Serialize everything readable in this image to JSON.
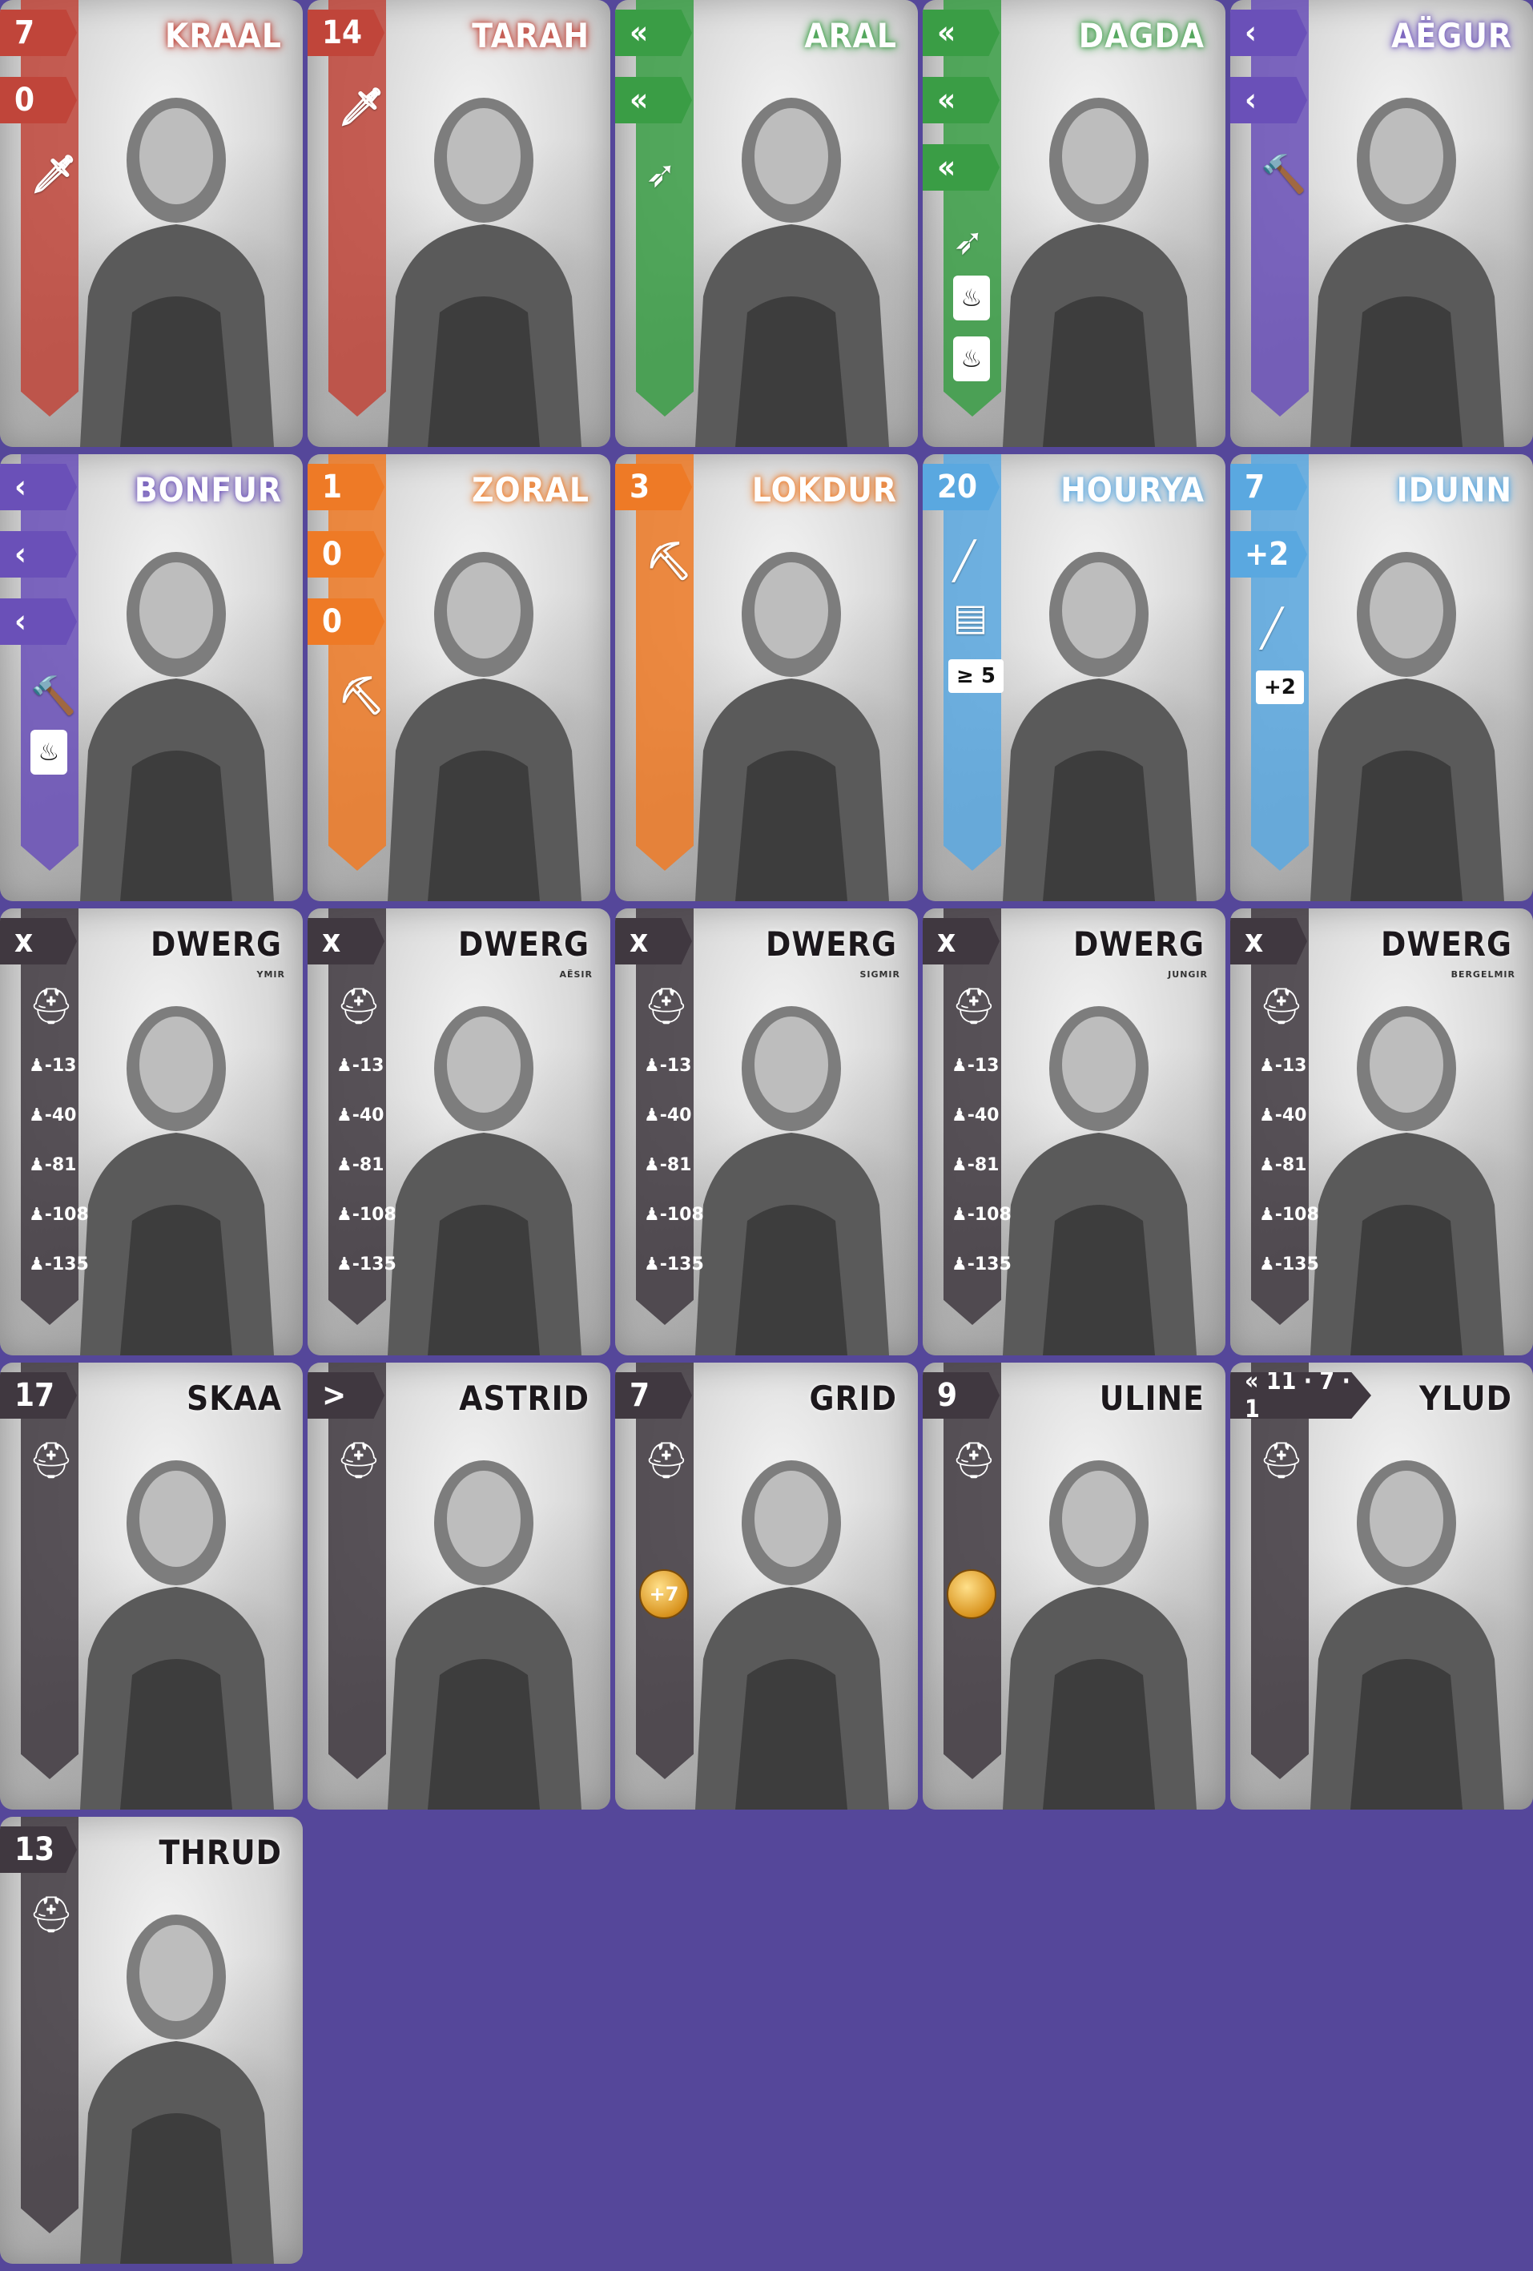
{
  "colors": {
    "background": "#55479a",
    "red": "#c0453a",
    "green": "#3a9d45",
    "purple": "#6a50b8",
    "orange": "#ee7a26",
    "blue": "#5aa8e0",
    "dark": "#403840"
  },
  "cards": [
    {
      "name": "KRAAL",
      "color": "#c0453a",
      "tabs": [
        "7",
        "0"
      ],
      "icons": [
        "sword-icon"
      ]
    },
    {
      "name": "TARAH",
      "color": "#c0453a",
      "tabs": [
        "14"
      ],
      "icons": [
        "sword-icon"
      ]
    },
    {
      "name": "ARAL",
      "color": "#3a9d45",
      "tabs": [
        "«",
        "«"
      ],
      "icons": [
        "horn-icon"
      ]
    },
    {
      "name": "DAGDA",
      "color": "#3a9d45",
      "tabs": [
        "«",
        "«",
        "«"
      ],
      "icons": [
        "horn-icon",
        "fire-icon",
        "fire-icon"
      ]
    },
    {
      "name": "AËGUR",
      "color": "#6a50b8",
      "tabs": [
        "‹",
        "‹"
      ],
      "icons": [
        "hammer-icon"
      ]
    },
    {
      "name": "BONFUR",
      "color": "#6a50b8",
      "tabs": [
        "‹",
        "‹",
        "‹"
      ],
      "icons": [
        "hammer-icon",
        "fire-icon"
      ]
    },
    {
      "name": "ZORAL",
      "color": "#ee7a26",
      "tabs": [
        "1",
        "0",
        "0"
      ],
      "icons": [
        "pickaxe-icon"
      ]
    },
    {
      "name": "LOKDUR",
      "color": "#ee7a26",
      "tabs": [
        "3"
      ],
      "icons": [
        "pickaxe-icon"
      ]
    },
    {
      "name": "HOURYA",
      "color": "#5aa8e0",
      "tabs": [
        "20"
      ],
      "icons": [
        "quill-icon",
        "card-icon"
      ],
      "extra": "≥ 5"
    },
    {
      "name": "IDUNN",
      "color": "#5aa8e0",
      "tabs": [
        "7",
        "+2"
      ],
      "icons": [
        "quill-icon"
      ],
      "extra": "+2"
    },
    {
      "name": "DWERG",
      "sub": "YMIR",
      "color": "#403840",
      "tabs": [
        "x"
      ],
      "thresholds": [
        "13",
        "40",
        "81",
        "108",
        "135"
      ]
    },
    {
      "name": "DWERG",
      "sub": "AËSIR",
      "color": "#403840",
      "tabs": [
        "x"
      ],
      "thresholds": [
        "13",
        "40",
        "81",
        "108",
        "135"
      ]
    },
    {
      "name": "DWERG",
      "sub": "SIGMIR",
      "color": "#403840",
      "tabs": [
        "x"
      ],
      "thresholds": [
        "13",
        "40",
        "81",
        "108",
        "135"
      ]
    },
    {
      "name": "DWERG",
      "sub": "JUNGIR",
      "color": "#403840",
      "tabs": [
        "x"
      ],
      "thresholds": [
        "13",
        "40",
        "81",
        "108",
        "135"
      ]
    },
    {
      "name": "DWERG",
      "sub": "BERGELMIR",
      "color": "#403840",
      "tabs": [
        "x"
      ],
      "thresholds": [
        "13",
        "40",
        "81",
        "108",
        "135"
      ]
    },
    {
      "name": "SKAA",
      "color": "#403840",
      "tabs": [
        "17"
      ]
    },
    {
      "name": "ASTRID",
      "color": "#403840",
      "tabs": [
        ">"
      ]
    },
    {
      "name": "GRID",
      "color": "#403840",
      "tabs": [
        "7"
      ],
      "coin": "+7"
    },
    {
      "name": "ULINE",
      "color": "#403840",
      "tabs": [
        "9"
      ],
      "coin": ""
    },
    {
      "name": "YLUD",
      "color": "#403840",
      "tabs": [
        "« 11 · 7 · 1"
      ]
    },
    {
      "name": "THRUD",
      "color": "#403840",
      "tabs": [
        "13"
      ]
    }
  ]
}
